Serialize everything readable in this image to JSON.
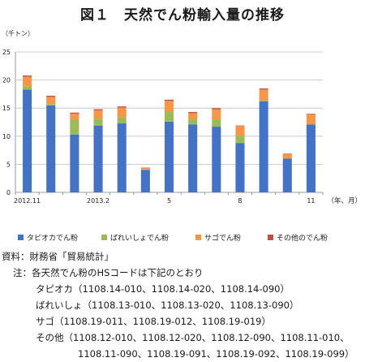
{
  "figure_title": "図１　天然でん粉輸入量の推移",
  "colors": {
    "tapioca": "#4472c4",
    "bareisho": "#9bbb59",
    "sago": "#f79646",
    "other": "#c0504d",
    "axis": "#7f7f7f",
    "grid": "#bfbfbf"
  },
  "chart_data": {
    "type": "bar",
    "stacked": true,
    "ylabel": "（千トン）",
    "xlabel": "（年、月）",
    "ylim": [
      0,
      25
    ],
    "yticks": [
      0,
      5,
      10,
      15,
      20,
      25
    ],
    "grid": true,
    "legend_position": "bottom",
    "categories": [
      "2012.11",
      "",
      "",
      "2013.2",
      "",
      "",
      "5",
      "",
      "",
      "8",
      "",
      "",
      "11"
    ],
    "series": [
      {
        "name": "タピオカでん粉",
        "color_key": "tapioca",
        "values": [
          18.3,
          15.5,
          10.3,
          11.9,
          12.3,
          4.0,
          12.6,
          12.1,
          11.7,
          8.8,
          16.2,
          6.0,
          12.1
        ]
      },
      {
        "name": "ばれいしょでん粉",
        "color_key": "bareisho",
        "values": [
          0.6,
          0.2,
          2.7,
          1.2,
          1.1,
          0.1,
          1.7,
          0.9,
          1.3,
          1.3,
          0.2,
          0.0,
          0.0
        ]
      },
      {
        "name": "サゴでん粉",
        "color_key": "sago",
        "values": [
          1.7,
          1.3,
          1.0,
          1.5,
          1.7,
          0.2,
          2.0,
          1.1,
          1.8,
          1.7,
          1.9,
          0.8,
          1.8
        ]
      },
      {
        "name": "その他のでん粉",
        "color_key": "other",
        "values": [
          0.2,
          0.2,
          0.2,
          0.2,
          0.2,
          0.1,
          0.2,
          0.2,
          0.2,
          0.1,
          0.2,
          0.1,
          0.1
        ]
      }
    ]
  },
  "notes": {
    "source": "資料：財務省「貿易統計」",
    "note_intro": "注：各天然でん粉のHSコードは下記のとおり",
    "tapioca": "タピオカ（1108.14-010、1108.14-020、1108.14-090）",
    "bareisho": "ばれいしょ（1108.13-010、1108.13-020、1108.13-090）",
    "sago": "サゴ（1108.19-011、1108.19-012、1108.19-019）",
    "other_1": "その他（1108.12-010、1108.12-020、1108.12-090、1108.11-010、",
    "other_2": "1108.11-090、1108.19-091、1108.19-092、1108.19-099）"
  }
}
